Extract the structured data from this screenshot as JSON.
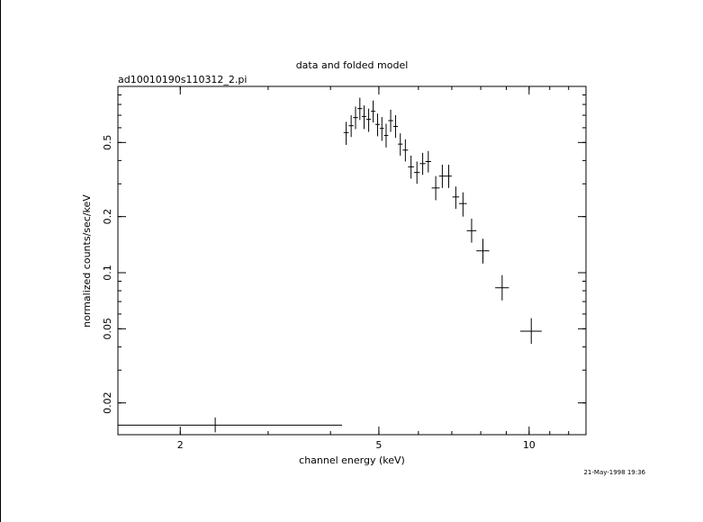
{
  "chart_data": {
    "type": "scatter",
    "title": "data and folded model",
    "subtitle": "ad10010190s110312_2.pi",
    "xlabel": "channel energy (keV)",
    "ylabel": "normalized counts/sec/keV",
    "x_scale": "log",
    "y_scale": "log",
    "xlim": [
      1.5,
      13.0
    ],
    "ylim": [
      0.0135,
      1.0
    ],
    "x_ticks": [
      {
        "value": 2,
        "label": "2"
      },
      {
        "value": 5,
        "label": "5"
      },
      {
        "value": 10,
        "label": "10"
      }
    ],
    "y_ticks": [
      {
        "value": 0.02,
        "label": "0.02"
      },
      {
        "value": 0.05,
        "label": "0.05"
      },
      {
        "value": 0.1,
        "label": "0.1"
      },
      {
        "value": 0.2,
        "label": "0.2"
      },
      {
        "value": 0.5,
        "label": "0.5"
      }
    ],
    "grid": false,
    "legend": "none",
    "timestamp": "21-May-1998 19:36",
    "points": [
      {
        "x": 2.35,
        "y": 0.0152,
        "x_lo": 1.5,
        "x_hi": 4.22,
        "y_lo": 0.0139,
        "y_hi": 0.0167
      },
      {
        "x": 4.3,
        "y": 0.565,
        "x_lo": 4.25,
        "x_hi": 4.35,
        "y_lo": 0.485,
        "y_hi": 0.645
      },
      {
        "x": 4.4,
        "y": 0.615,
        "x_lo": 4.35,
        "x_hi": 4.45,
        "y_lo": 0.535,
        "y_hi": 0.7
      },
      {
        "x": 4.49,
        "y": 0.68,
        "x_lo": 4.44,
        "x_hi": 4.54,
        "y_lo": 0.59,
        "y_hi": 0.78
      },
      {
        "x": 4.58,
        "y": 0.76,
        "x_lo": 4.53,
        "x_hi": 4.63,
        "y_lo": 0.66,
        "y_hi": 0.87
      },
      {
        "x": 4.67,
        "y": 0.69,
        "x_lo": 4.62,
        "x_hi": 4.72,
        "y_lo": 0.59,
        "y_hi": 0.79
      },
      {
        "x": 4.77,
        "y": 0.665,
        "x_lo": 4.72,
        "x_hi": 4.82,
        "y_lo": 0.57,
        "y_hi": 0.76
      },
      {
        "x": 4.87,
        "y": 0.735,
        "x_lo": 4.82,
        "x_hi": 4.92,
        "y_lo": 0.64,
        "y_hi": 0.84
      },
      {
        "x": 4.97,
        "y": 0.625,
        "x_lo": 4.92,
        "x_hi": 5.02,
        "y_lo": 0.54,
        "y_hi": 0.715
      },
      {
        "x": 5.07,
        "y": 0.595,
        "x_lo": 5.02,
        "x_hi": 5.12,
        "y_lo": 0.51,
        "y_hi": 0.685
      },
      {
        "x": 5.17,
        "y": 0.545,
        "x_lo": 5.12,
        "x_hi": 5.22,
        "y_lo": 0.47,
        "y_hi": 0.63
      },
      {
        "x": 5.28,
        "y": 0.655,
        "x_lo": 5.22,
        "x_hi": 5.34,
        "y_lo": 0.57,
        "y_hi": 0.75
      },
      {
        "x": 5.4,
        "y": 0.61,
        "x_lo": 5.34,
        "x_hi": 5.46,
        "y_lo": 0.53,
        "y_hi": 0.7
      },
      {
        "x": 5.52,
        "y": 0.49,
        "x_lo": 5.46,
        "x_hi": 5.58,
        "y_lo": 0.425,
        "y_hi": 0.56
      },
      {
        "x": 5.65,
        "y": 0.455,
        "x_lo": 5.58,
        "x_hi": 5.72,
        "y_lo": 0.395,
        "y_hi": 0.52
      },
      {
        "x": 5.8,
        "y": 0.37,
        "x_lo": 5.72,
        "x_hi": 5.88,
        "y_lo": 0.32,
        "y_hi": 0.425
      },
      {
        "x": 5.96,
        "y": 0.345,
        "x_lo": 5.88,
        "x_hi": 6.04,
        "y_lo": 0.3,
        "y_hi": 0.395
      },
      {
        "x": 6.12,
        "y": 0.385,
        "x_lo": 6.04,
        "x_hi": 6.2,
        "y_lo": 0.335,
        "y_hi": 0.44
      },
      {
        "x": 6.28,
        "y": 0.395,
        "x_lo": 6.2,
        "x_hi": 6.36,
        "y_lo": 0.345,
        "y_hi": 0.45
      },
      {
        "x": 6.5,
        "y": 0.285,
        "x_lo": 6.38,
        "x_hi": 6.62,
        "y_lo": 0.245,
        "y_hi": 0.33
      },
      {
        "x": 6.7,
        "y": 0.33,
        "x_lo": 6.6,
        "x_hi": 6.8,
        "y_lo": 0.285,
        "y_hi": 0.38
      },
      {
        "x": 6.9,
        "y": 0.33,
        "x_lo": 6.8,
        "x_hi": 7.0,
        "y_lo": 0.285,
        "y_hi": 0.38
      },
      {
        "x": 7.13,
        "y": 0.255,
        "x_lo": 7.02,
        "x_hi": 7.24,
        "y_lo": 0.22,
        "y_hi": 0.29
      },
      {
        "x": 7.37,
        "y": 0.235,
        "x_lo": 7.24,
        "x_hi": 7.5,
        "y_lo": 0.2,
        "y_hi": 0.27
      },
      {
        "x": 7.67,
        "y": 0.168,
        "x_lo": 7.5,
        "x_hi": 7.84,
        "y_lo": 0.145,
        "y_hi": 0.195
      },
      {
        "x": 8.08,
        "y": 0.131,
        "x_lo": 7.84,
        "x_hi": 8.32,
        "y_lo": 0.112,
        "y_hi": 0.152
      },
      {
        "x": 8.83,
        "y": 0.083,
        "x_lo": 8.55,
        "x_hi": 9.11,
        "y_lo": 0.071,
        "y_hi": 0.097
      },
      {
        "x": 10.1,
        "y": 0.0485,
        "x_lo": 9.6,
        "x_hi": 10.6,
        "y_lo": 0.0415,
        "y_hi": 0.057
      }
    ]
  }
}
